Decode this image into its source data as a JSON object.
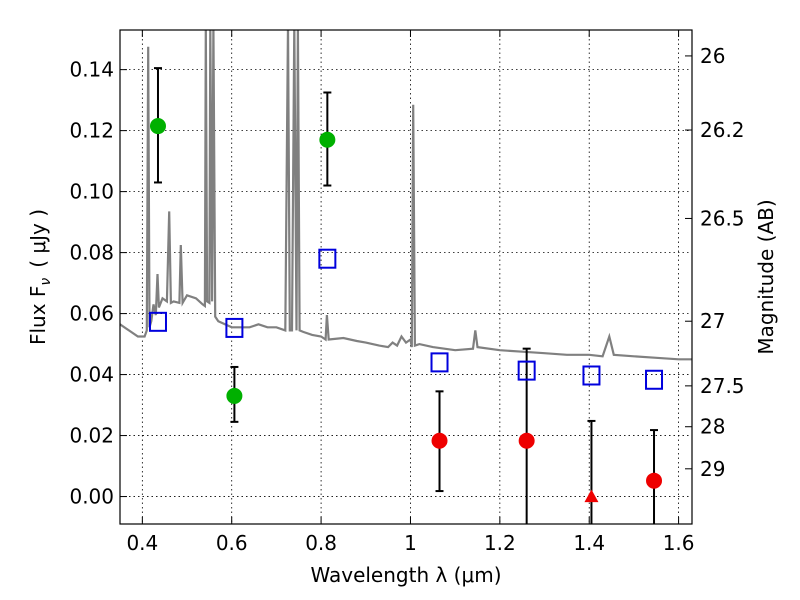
{
  "chart_data": {
    "type": "scatter",
    "xlabel": "Wavelength  λ (μm)",
    "ylabel": "Flux  F",
    "ylabel_sub": "ν",
    "ylabel_unit": "( μJy )",
    "y2label": "Magnitude (AB)",
    "xlim": [
      0.35,
      1.63
    ],
    "ylim": [
      -0.009,
      0.153
    ],
    "grid": true,
    "x_ticks": [
      0.4,
      0.6,
      0.8,
      1.0,
      1.2,
      1.4,
      1.6
    ],
    "x_tick_labels": [
      "0.4",
      "0.6",
      "0.8",
      "1",
      "1.2",
      "1.4",
      "1.6"
    ],
    "y_ticks": [
      0.0,
      0.02,
      0.04,
      0.06,
      0.08,
      0.1,
      0.12,
      0.14
    ],
    "y_tick_labels": [
      "0.00",
      "0.02",
      "0.04",
      "0.06",
      "0.08",
      "0.10",
      "0.12",
      "0.14"
    ],
    "y2_ticks": [
      {
        "label": "26",
        "flux": 0.1445
      },
      {
        "label": "26.2",
        "flux": 0.1202
      },
      {
        "label": "26.5",
        "flux": 0.0912
      },
      {
        "label": "27",
        "flux": 0.0575
      },
      {
        "label": "27.5",
        "flux": 0.0363
      },
      {
        "label": "28",
        "flux": 0.0229
      },
      {
        "label": "29",
        "flux": 0.0091
      }
    ],
    "series": [
      {
        "marker": "circle",
        "color": "#00b000",
        "points": [
          {
            "x": 0.435,
            "y": 0.1215,
            "err_lo": 0.103,
            "err_hi": 0.1405
          },
          {
            "x": 0.606,
            "y": 0.033,
            "err_lo": 0.0245,
            "err_hi": 0.0425
          },
          {
            "x": 0.814,
            "y": 0.117,
            "err_lo": 0.102,
            "err_hi": 0.1325
          }
        ]
      },
      {
        "marker": "circle",
        "color": "#ee0000",
        "points": [
          {
            "x": 1.065,
            "y": 0.0183,
            "err_lo": 0.0018,
            "err_hi": 0.0345
          },
          {
            "x": 1.26,
            "y": 0.0183,
            "err_lo": -0.009,
            "err_hi": 0.0485
          },
          {
            "x": 1.545,
            "y": 0.0052,
            "err_lo": -0.009,
            "err_hi": 0.0218
          }
        ]
      },
      {
        "marker": "triangle",
        "color": "#ee0000",
        "points": [
          {
            "x": 1.405,
            "y": 0.0,
            "err_lo": -0.009,
            "err_hi": 0.0248
          }
        ]
      },
      {
        "marker": "open-square",
        "color": "#0000dd",
        "points": [
          {
            "x": 0.435,
            "y": 0.0573
          },
          {
            "x": 0.606,
            "y": 0.0553
          },
          {
            "x": 0.814,
            "y": 0.078
          },
          {
            "x": 1.065,
            "y": 0.044
          },
          {
            "x": 1.26,
            "y": 0.0413
          },
          {
            "x": 1.405,
            "y": 0.0397
          },
          {
            "x": 1.545,
            "y": 0.0383
          }
        ]
      }
    ],
    "sed_model": {
      "color": "#808080",
      "points": [
        [
          0.35,
          0.0565
        ],
        [
          0.37,
          0.0545
        ],
        [
          0.39,
          0.0525
        ],
        [
          0.405,
          0.0525
        ],
        [
          0.41,
          0.0545
        ],
        [
          0.413,
          0.1475
        ],
        [
          0.416,
          0.0555
        ],
        [
          0.42,
          0.0575
        ],
        [
          0.425,
          0.063
        ],
        [
          0.43,
          0.0595
        ],
        [
          0.434,
          0.073
        ],
        [
          0.437,
          0.062
        ],
        [
          0.445,
          0.065
        ],
        [
          0.455,
          0.064
        ],
        [
          0.46,
          0.0935
        ],
        [
          0.464,
          0.0635
        ],
        [
          0.47,
          0.064
        ],
        [
          0.483,
          0.0635
        ],
        [
          0.486,
          0.0825
        ],
        [
          0.49,
          0.0635
        ],
        [
          0.5,
          0.066
        ],
        [
          0.52,
          0.065
        ],
        [
          0.535,
          0.063
        ],
        [
          0.54,
          0.0625
        ],
        [
          0.542,
          0.155
        ],
        [
          0.545,
          0.064
        ],
        [
          0.55,
          0.0635
        ],
        [
          0.552,
          0.155
        ],
        [
          0.556,
          0.064
        ],
        [
          0.559,
          0.155
        ],
        [
          0.563,
          0.059
        ],
        [
          0.57,
          0.0575
        ],
        [
          0.6,
          0.0555
        ],
        [
          0.64,
          0.0555
        ],
        [
          0.66,
          0.0565
        ],
        [
          0.68,
          0.0555
        ],
        [
          0.7,
          0.0555
        ],
        [
          0.72,
          0.0545
        ],
        [
          0.726,
          0.155
        ],
        [
          0.73,
          0.0545
        ],
        [
          0.735,
          0.0545
        ],
        [
          0.74,
          0.155
        ],
        [
          0.745,
          0.0545
        ],
        [
          0.748,
          0.155
        ],
        [
          0.752,
          0.0545
        ],
        [
          0.76,
          0.054
        ],
        [
          0.78,
          0.053
        ],
        [
          0.8,
          0.0525
        ],
        [
          0.81,
          0.0515
        ],
        [
          0.813,
          0.0595
        ],
        [
          0.817,
          0.0515
        ],
        [
          0.85,
          0.052
        ],
        [
          0.88,
          0.051
        ],
        [
          0.9,
          0.0505
        ],
        [
          0.93,
          0.0495
        ],
        [
          0.95,
          0.049
        ],
        [
          0.96,
          0.0505
        ],
        [
          0.97,
          0.0495
        ],
        [
          0.98,
          0.0525
        ],
        [
          0.99,
          0.0505
        ],
        [
          1.0,
          0.0515
        ],
        [
          1.003,
          0.049
        ],
        [
          1.006,
          0.1285
        ],
        [
          1.01,
          0.0495
        ],
        [
          1.02,
          0.05
        ],
        [
          1.05,
          0.049
        ],
        [
          1.1,
          0.048
        ],
        [
          1.14,
          0.0485
        ],
        [
          1.145,
          0.0545
        ],
        [
          1.15,
          0.049
        ],
        [
          1.2,
          0.048
        ],
        [
          1.25,
          0.0475
        ],
        [
          1.3,
          0.047
        ],
        [
          1.35,
          0.0465
        ],
        [
          1.4,
          0.0465
        ],
        [
          1.43,
          0.046
        ],
        [
          1.445,
          0.0525
        ],
        [
          1.455,
          0.0465
        ],
        [
          1.5,
          0.046
        ],
        [
          1.55,
          0.0455
        ],
        [
          1.6,
          0.045
        ],
        [
          1.63,
          0.045
        ]
      ]
    }
  }
}
